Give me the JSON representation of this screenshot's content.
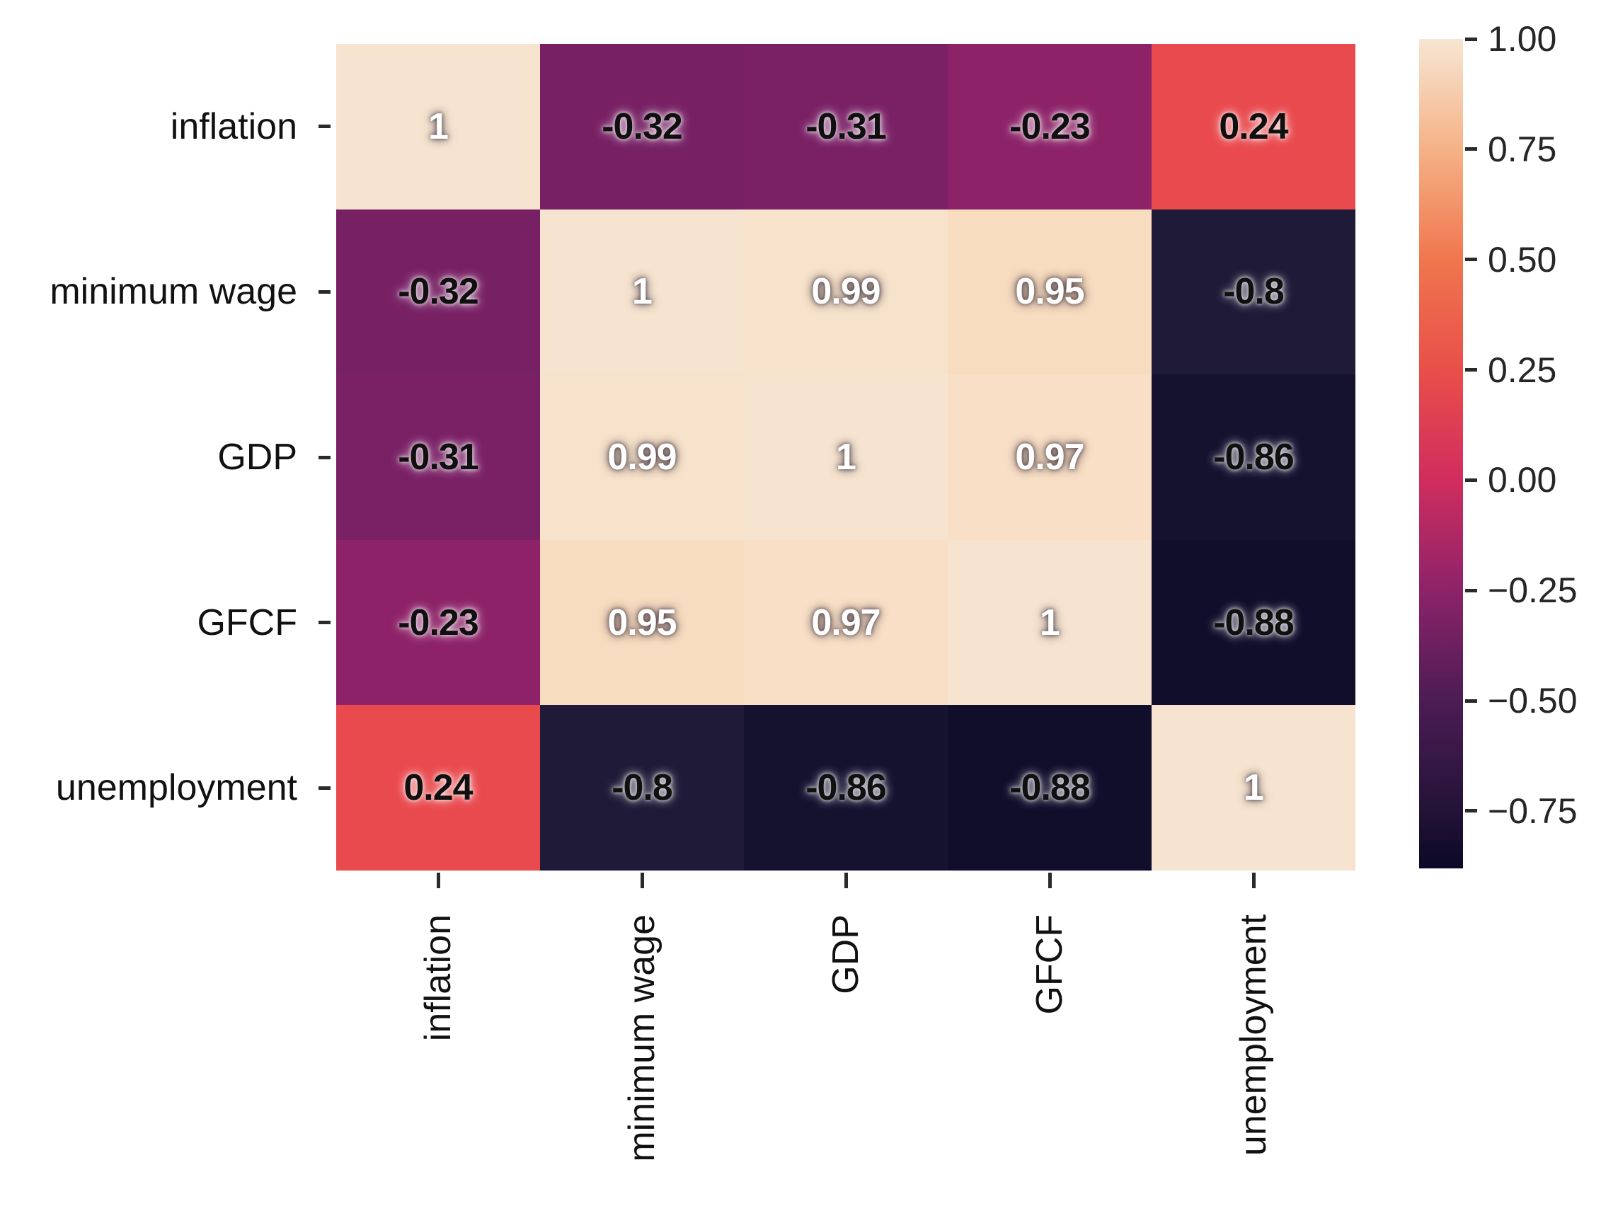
{
  "chart_data": {
    "type": "heatmap",
    "title": "",
    "xlabel": "",
    "ylabel": "",
    "grid": false,
    "legend_position": "right-colorbar",
    "categories": [
      "inflation",
      "minimum wage",
      "GDP",
      "GFCF",
      "unemployment"
    ],
    "matrix": [
      [
        1,
        -0.32,
        -0.31,
        -0.23,
        0.24
      ],
      [
        -0.32,
        1,
        0.99,
        0.95,
        -0.8
      ],
      [
        -0.31,
        0.99,
        1,
        0.97,
        -0.86
      ],
      [
        -0.23,
        0.95,
        0.97,
        1,
        -0.88
      ],
      [
        0.24,
        -0.8,
        -0.86,
        -0.88,
        1
      ]
    ],
    "cell_labels": [
      [
        "1",
        "-0.32",
        "-0.31",
        "-0.23",
        "0.24"
      ],
      [
        "-0.32",
        "1",
        "0.99",
        "0.95",
        "-0.8"
      ],
      [
        "-0.31",
        "0.99",
        "1",
        "0.97",
        "-0.86"
      ],
      [
        "-0.23",
        "0.95",
        "0.97",
        "1",
        "-0.88"
      ],
      [
        "0.24",
        "-0.8",
        "-0.86",
        "-0.88",
        "1"
      ]
    ],
    "cell_colors": [
      [
        "#f6e4d0",
        "#772164",
        "#7a2166",
        "#8d2268",
        "#e94a4e"
      ],
      [
        "#772164",
        "#f6e4d0",
        "#f7e2cb",
        "#f8dcc0",
        "#1e1a37"
      ],
      [
        "#7a2166",
        "#f7e2cb",
        "#f6e4d0",
        "#f8dfc6",
        "#151230"
      ],
      [
        "#8d2268",
        "#f8dcc0",
        "#f8dfc6",
        "#f6e4d0",
        "#110e2b"
      ],
      [
        "#e94a4e",
        "#1e1a37",
        "#151230",
        "#110e2b",
        "#f6e4d0"
      ]
    ],
    "cell_text_colors": [
      [
        "dark",
        "light",
        "light",
        "light",
        "light"
      ],
      [
        "light",
        "dark",
        "dark",
        "dark",
        "light"
      ],
      [
        "light",
        "dark",
        "dark",
        "dark",
        "light"
      ],
      [
        "light",
        "dark",
        "dark",
        "dark",
        "light"
      ],
      [
        "light",
        "light",
        "light",
        "light",
        "dark"
      ]
    ],
    "colorbar": {
      "vmin": -0.88,
      "vmax": 1.0,
      "tick_labels": [
        "1.00",
        "0.75",
        "0.50",
        "0.25",
        "0.00",
        "−0.25",
        "−0.50",
        "−0.75"
      ],
      "tick_values": [
        1.0,
        0.75,
        0.5,
        0.25,
        0.0,
        -0.25,
        -0.5,
        -0.75
      ],
      "gradient_stops": [
        {
          "value": 1.0,
          "color": "#f7e6d3"
        },
        {
          "value": 0.75,
          "color": "#f5b286"
        },
        {
          "value": 0.5,
          "color": "#f0764e"
        },
        {
          "value": 0.25,
          "color": "#e94f49"
        },
        {
          "value": 0.0,
          "color": "#d02d5e"
        },
        {
          "value": -0.25,
          "color": "#8d2369"
        },
        {
          "value": -0.5,
          "color": "#4c1c55"
        },
        {
          "value": -0.75,
          "color": "#231336"
        },
        {
          "value": -0.88,
          "color": "#0c0827"
        }
      ]
    }
  }
}
